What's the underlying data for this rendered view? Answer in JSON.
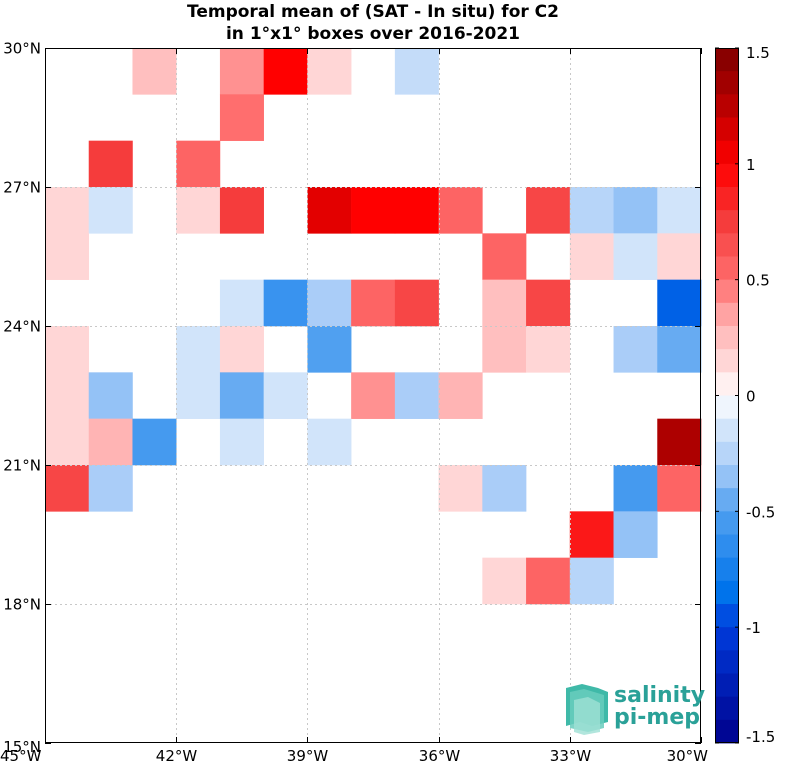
{
  "chart_data": {
    "type": "heatmap",
    "title": [
      "Temporal mean of (SAT - In situ) for C2",
      "in 1°x1° boxes over 2016-2021"
    ],
    "x_ticks": [
      "45°W",
      "42°W",
      "39°W",
      "36°W",
      "33°W",
      "30°W"
    ],
    "y_ticks": [
      "30°N",
      "27°N",
      "24°N",
      "21°N",
      "18°N",
      "15°N"
    ],
    "xlim": [
      -45,
      -30
    ],
    "ylim": [
      15,
      30
    ],
    "grid": true,
    "colorbar": {
      "range": [
        -1.5,
        1.5
      ],
      "ticks": [
        "1.5",
        "1",
        "0.5",
        "0",
        "-0.5",
        "-1",
        "-1.5"
      ]
    },
    "cells": [
      {
        "lon": -43,
        "lat": 29,
        "value": 0.25
      },
      {
        "lon": -41,
        "lat": 29,
        "value": 0.4
      },
      {
        "lon": -40,
        "lat": 29,
        "value": 1.0
      },
      {
        "lon": -39,
        "lat": 29,
        "value": 0.15
      },
      {
        "lon": -37,
        "lat": 29,
        "value": -0.2
      },
      {
        "lon": -41,
        "lat": 28,
        "value": 0.5
      },
      {
        "lon": -44,
        "lat": 27,
        "value": 0.75
      },
      {
        "lon": -42,
        "lat": 27,
        "value": 0.55
      },
      {
        "lon": -45,
        "lat": 26,
        "value": 0.15
      },
      {
        "lon": -44,
        "lat": 26,
        "value": -0.15
      },
      {
        "lon": -42,
        "lat": 26,
        "value": 0.15
      },
      {
        "lon": -41,
        "lat": 26,
        "value": 0.75
      },
      {
        "lon": -39,
        "lat": 26,
        "value": 1.1
      },
      {
        "lon": -38,
        "lat": 26,
        "value": 1.0
      },
      {
        "lon": -37,
        "lat": 26,
        "value": 1.0
      },
      {
        "lon": -36,
        "lat": 26,
        "value": 0.55
      },
      {
        "lon": -34,
        "lat": 26,
        "value": 0.7
      },
      {
        "lon": -33,
        "lat": 26,
        "value": -0.25
      },
      {
        "lon": -32,
        "lat": 26,
        "value": -0.35
      },
      {
        "lon": -31,
        "lat": 26,
        "value": -0.15
      },
      {
        "lon": -45,
        "lat": 25,
        "value": 0.15
      },
      {
        "lon": -35,
        "lat": 25,
        "value": 0.55
      },
      {
        "lon": -33,
        "lat": 25,
        "value": 0.15
      },
      {
        "lon": -32,
        "lat": 25,
        "value": -0.15
      },
      {
        "lon": -31,
        "lat": 25,
        "value": 0.15
      },
      {
        "lon": -41,
        "lat": 24,
        "value": -0.15
      },
      {
        "lon": -40,
        "lat": 24,
        "value": -0.6
      },
      {
        "lon": -39,
        "lat": 24,
        "value": -0.3
      },
      {
        "lon": -38,
        "lat": 24,
        "value": 0.55
      },
      {
        "lon": -37,
        "lat": 24,
        "value": 0.7
      },
      {
        "lon": -35,
        "lat": 24,
        "value": 0.25
      },
      {
        "lon": -34,
        "lat": 24,
        "value": 0.7
      },
      {
        "lon": -31,
        "lat": 24,
        "value": -0.9
      },
      {
        "lon": -45,
        "lat": 23,
        "value": 0.15
      },
      {
        "lon": -42,
        "lat": 23,
        "value": -0.15
      },
      {
        "lon": -41,
        "lat": 23,
        "value": 0.15
      },
      {
        "lon": -39,
        "lat": 23,
        "value": -0.5
      },
      {
        "lon": -35,
        "lat": 23,
        "value": 0.25
      },
      {
        "lon": -34,
        "lat": 23,
        "value": 0.15
      },
      {
        "lon": -32,
        "lat": 23,
        "value": -0.3
      },
      {
        "lon": -31,
        "lat": 23,
        "value": -0.45
      },
      {
        "lon": -45,
        "lat": 22,
        "value": 0.15
      },
      {
        "lon": -44,
        "lat": 22,
        "value": -0.35
      },
      {
        "lon": -42,
        "lat": 22,
        "value": -0.15
      },
      {
        "lon": -41,
        "lat": 22,
        "value": -0.45
      },
      {
        "lon": -40,
        "lat": 22,
        "value": -0.15
      },
      {
        "lon": -38,
        "lat": 22,
        "value": 0.4
      },
      {
        "lon": -37,
        "lat": 22,
        "value": -0.3
      },
      {
        "lon": -36,
        "lat": 22,
        "value": 0.3
      },
      {
        "lon": -45,
        "lat": 21,
        "value": 0.15
      },
      {
        "lon": -44,
        "lat": 21,
        "value": 0.3
      },
      {
        "lon": -43,
        "lat": 21,
        "value": -0.55
      },
      {
        "lon": -41,
        "lat": 21,
        "value": -0.15
      },
      {
        "lon": -39,
        "lat": 21,
        "value": -0.15
      },
      {
        "lon": -31,
        "lat": 21,
        "value": 1.3
      },
      {
        "lon": -45,
        "lat": 20,
        "value": 0.7
      },
      {
        "lon": -44,
        "lat": 20,
        "value": -0.3
      },
      {
        "lon": -36,
        "lat": 20,
        "value": 0.15
      },
      {
        "lon": -35,
        "lat": 20,
        "value": -0.3
      },
      {
        "lon": -32,
        "lat": 20,
        "value": -0.55
      },
      {
        "lon": -31,
        "lat": 20,
        "value": 0.55
      },
      {
        "lon": -33,
        "lat": 19,
        "value": 0.9
      },
      {
        "lon": -32,
        "lat": 19,
        "value": -0.35
      },
      {
        "lon": -35,
        "lat": 18,
        "value": 0.15
      },
      {
        "lon": -34,
        "lat": 18,
        "value": 0.55
      },
      {
        "lon": -33,
        "lat": 18,
        "value": -0.25
      }
    ]
  },
  "logo": {
    "line1": "salinity",
    "line2": "pi-mep"
  }
}
